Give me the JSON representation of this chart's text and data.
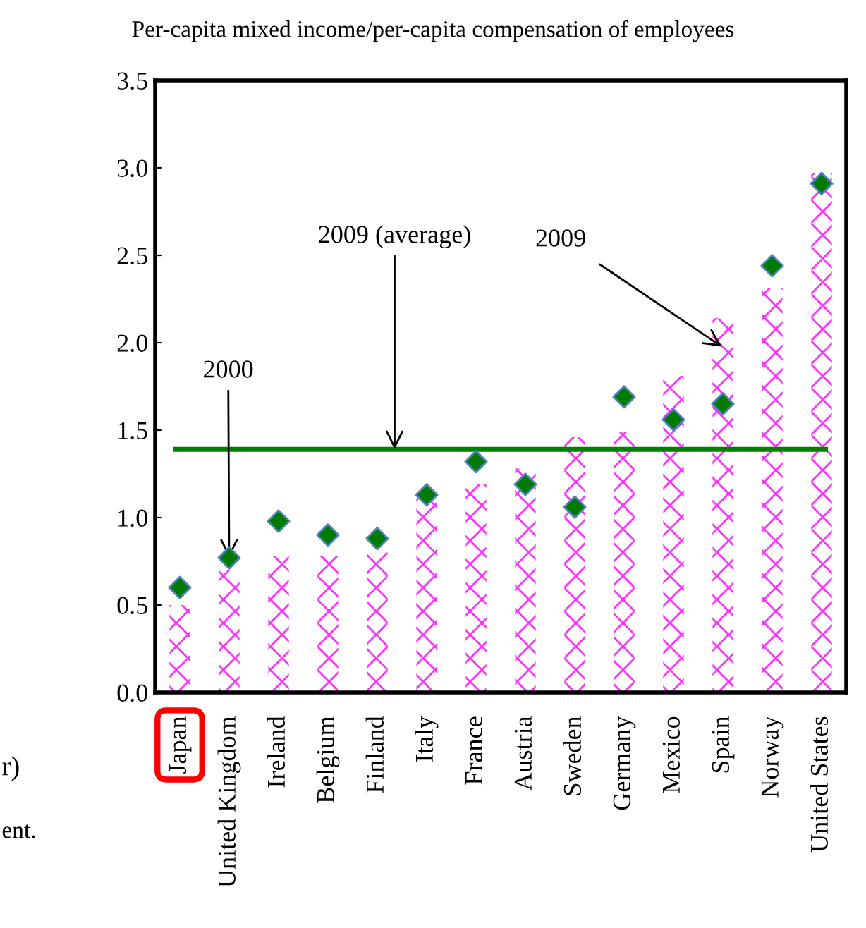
{
  "chart_data": {
    "type": "bar",
    "title": "Per-capita mixed income/per-capita compensation of employees",
    "categories": [
      "Japan",
      "United Kingdom",
      "Ireland",
      "Belgium",
      "Finland",
      "Italy",
      "France",
      "Austria",
      "Sweden",
      "Germany",
      "Mexico",
      "Spain",
      "Norway",
      "United States"
    ],
    "series": [
      {
        "color": "#ff33ff",
        "values": [
          0.5,
          0.7,
          0.78,
          0.78,
          0.8,
          1.11,
          1.19,
          1.28,
          1.46,
          1.49,
          1.81,
          2.14,
          2.31,
          2.97
        ]
      },
      {
        "type": "scatter",
        "color": "#007a00",
        "values": [
          0.6,
          0.77,
          0.98,
          0.9,
          0.88,
          1.13,
          1.32,
          1.19,
          1.06,
          1.69,
          1.56,
          1.65,
          2.44,
          2.91
        ]
      }
    ],
    "ylim": [
      0,
      3.5
    ],
    "yticks": [
      {
        "value": 0,
        "label": "0.0"
      },
      {
        "value": 0.5,
        "label": "0.5"
      },
      {
        "value": 1.0,
        "label": "1.0"
      },
      {
        "value": 1.5,
        "label": "1.5"
      },
      {
        "value": 2.0,
        "label": "2.0"
      },
      {
        "value": 2.5,
        "label": "2.5"
      },
      {
        "value": 3.0,
        "label": "3.0"
      },
      {
        "value": 3.5,
        "label": "3.5"
      }
    ],
    "ref_lines": [
      {
        "axis": "y",
        "value": 1.39,
        "label": "2009 (average)",
        "color": "#008000"
      }
    ],
    "annotations": [
      {
        "text": "2000",
        "x": "United Kingdom",
        "y": 0.77
      },
      "2009",
      "r)",
      "ent."
    ],
    "marker": "diamond",
    "grid": false,
    "legend": false
  }
}
